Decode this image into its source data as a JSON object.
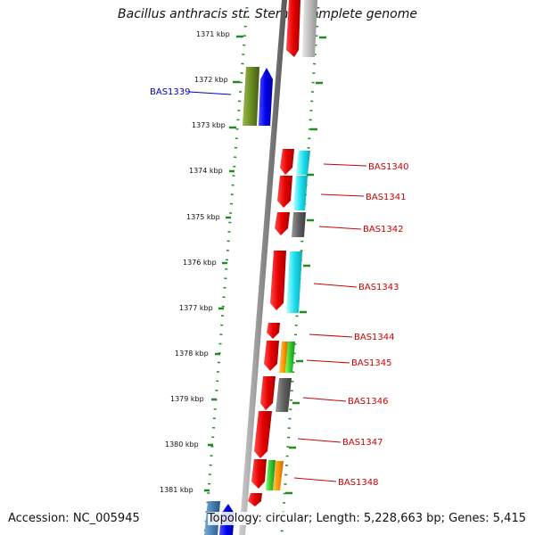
{
  "title": "Bacillus anthracis str. Sterne, complete genome",
  "footer": {
    "accession": "Accession: NC_005945",
    "summary": "Topology: circular; Length: 5,228,663 bp; Genes: 5,415"
  },
  "colors": {
    "track_dots": "#228b22",
    "label_right": "#cc0000",
    "label_left": "#0000cc",
    "spine": "#888888"
  },
  "ruler": [
    "1371 kbp",
    "1372 kbp",
    "1373 kbp",
    "1374 kbp",
    "1375 kbp",
    "1376 kbp",
    "1377 kbp",
    "1378 kbp",
    "1379 kbp",
    "1380 kbp",
    "1381 kbp"
  ],
  "gene_labels": [
    {
      "text": "BAS1339",
      "side": "left"
    },
    {
      "text": "BAS1340",
      "side": "right"
    },
    {
      "text": "BAS1341",
      "side": "right"
    },
    {
      "text": "BAS1342",
      "side": "right"
    },
    {
      "text": "BAS1343",
      "side": "right"
    },
    {
      "text": "BAS1344",
      "side": "right"
    },
    {
      "text": "BAS1345",
      "side": "right"
    },
    {
      "text": "BAS1346",
      "side": "right"
    },
    {
      "text": "BAS1347",
      "side": "right"
    },
    {
      "text": "BAS1348",
      "side": "right"
    }
  ]
}
